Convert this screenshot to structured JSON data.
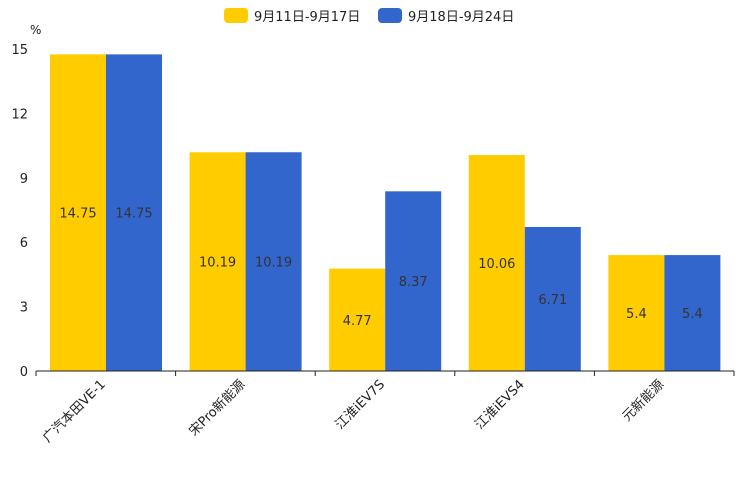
{
  "chart_data": {
    "type": "bar",
    "title": "",
    "xlabel": "",
    "ylabel": "%",
    "ylim": [
      0,
      15
    ],
    "yticks": [
      0,
      3,
      6,
      9,
      12,
      15
    ],
    "grid": false,
    "legend_position": "top-center",
    "categories": [
      "广汽本田VE-1",
      "宋Pro新能源",
      "江淮iEV7S",
      "江淮iEVS4",
      "元新能源"
    ],
    "series": [
      {
        "name": "9月11日-9月17日",
        "color": "#FFCC00",
        "values": [
          14.75,
          10.19,
          4.77,
          10.06,
          5.4
        ],
        "labels": [
          "14.75",
          "10.19",
          "4.77",
          "10.06",
          "5.4"
        ]
      },
      {
        "name": "9月18日-9月24日",
        "color": "#3366CC",
        "values": [
          14.75,
          10.19,
          8.37,
          6.71,
          5.4
        ],
        "labels": [
          "14.75",
          "10.19",
          "8.37",
          "6.71",
          "5.4"
        ]
      }
    ]
  }
}
